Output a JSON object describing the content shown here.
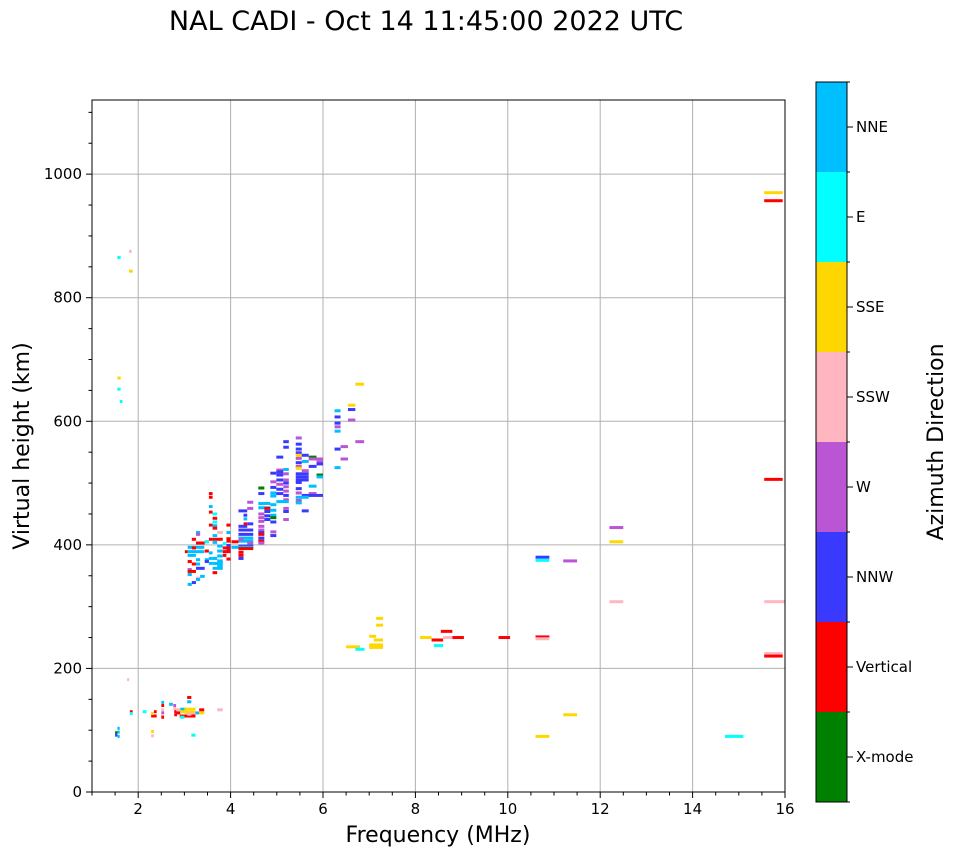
{
  "chart_data": {
    "type": "scatter",
    "title": "NAL CADI - Oct 14 11:45:00 2022 UTC",
    "xlabel": "Frequency (MHz)",
    "ylabel": "Virtual height (km)",
    "xlim": [
      1,
      16
    ],
    "ylim": [
      0,
      1120
    ],
    "xticks": [
      2,
      4,
      6,
      8,
      10,
      12,
      14,
      16
    ],
    "yticks": [
      0,
      200,
      400,
      600,
      800,
      1000
    ],
    "grid": true,
    "colorbar": {
      "label": "Azimuth Direction",
      "categories": [
        "X-mode",
        "Vertical",
        "NNW",
        "W",
        "SSW",
        "SSE",
        "E",
        "NNE"
      ],
      "colors": [
        "#008000",
        "#ff0000",
        "#3a3aff",
        "#ba55d3",
        "#ffb6c1",
        "#ffd700",
        "#00ffff",
        "#00bfff"
      ]
    },
    "marks_format": "[freq_start_MHz, freq_end_MHz, height_km, category_index]",
    "marks": [
      [
        15.55,
        15.95,
        970,
        5
      ],
      [
        15.55,
        15.95,
        957,
        1
      ],
      [
        15.55,
        15.95,
        506,
        1
      ],
      [
        15.55,
        16.0,
        308,
        4
      ],
      [
        12.2,
        12.5,
        308,
        4
      ],
      [
        15.55,
        15.95,
        224,
        4
      ],
      [
        15.55,
        15.95,
        220,
        1
      ],
      [
        14.7,
        15.1,
        90,
        6
      ],
      [
        10.6,
        10.9,
        90,
        5
      ],
      [
        11.2,
        11.5,
        125,
        5
      ],
      [
        10.6,
        10.9,
        380,
        2
      ],
      [
        10.6,
        10.9,
        375,
        6
      ],
      [
        11.2,
        11.5,
        374,
        3
      ],
      [
        12.2,
        12.5,
        428,
        3
      ],
      [
        12.2,
        12.5,
        405,
        5
      ],
      [
        10.6,
        10.9,
        251,
        1
      ],
      [
        10.6,
        10.9,
        248,
        4
      ],
      [
        9.8,
        10.05,
        250,
        1
      ],
      [
        8.1,
        8.35,
        250,
        5
      ],
      [
        8.35,
        8.6,
        246,
        1
      ],
      [
        8.4,
        8.6,
        237,
        6
      ],
      [
        8.55,
        8.8,
        260,
        1
      ],
      [
        8.8,
        9.05,
        250,
        1
      ],
      [
        8.6,
        8.8,
        250,
        4
      ],
      [
        6.5,
        6.8,
        235,
        5
      ],
      [
        6.7,
        6.9,
        231,
        6
      ],
      [
        7.0,
        7.3,
        238,
        5
      ],
      [
        7.0,
        7.3,
        234,
        5
      ],
      [
        7.1,
        7.3,
        246,
        5
      ],
      [
        7.15,
        7.3,
        270,
        5
      ],
      [
        7.15,
        7.3,
        281,
        5
      ],
      [
        7.0,
        7.15,
        252,
        5
      ],
      [
        1.55,
        1.62,
        865,
        6
      ],
      [
        1.8,
        1.86,
        875,
        4
      ],
      [
        1.8,
        1.88,
        843,
        5
      ],
      [
        1.55,
        1.62,
        670,
        5
      ],
      [
        1.55,
        1.62,
        652,
        6
      ],
      [
        1.6,
        1.66,
        632,
        6
      ],
      [
        6.7,
        6.89,
        660,
        5
      ],
      [
        6.54,
        6.7,
        626,
        5
      ],
      [
        6.54,
        6.7,
        619,
        2
      ],
      [
        6.54,
        6.7,
        602,
        3
      ],
      [
        6.25,
        6.38,
        617,
        7
      ],
      [
        6.25,
        6.38,
        607,
        2
      ],
      [
        6.25,
        6.38,
        597,
        2
      ],
      [
        6.25,
        6.38,
        591,
        3
      ],
      [
        6.25,
        6.38,
        584,
        7
      ],
      [
        6.7,
        6.89,
        567,
        3
      ],
      [
        6.25,
        6.38,
        555,
        2
      ],
      [
        6.38,
        6.54,
        559,
        3
      ],
      [
        6.38,
        6.54,
        539,
        3
      ],
      [
        6.25,
        6.38,
        525,
        7
      ],
      [
        5.41,
        5.54,
        573,
        3
      ],
      [
        5.41,
        5.54,
        563,
        2
      ],
      [
        5.41,
        5.54,
        555,
        2
      ],
      [
        5.41,
        5.54,
        549,
        2
      ],
      [
        5.41,
        5.54,
        545,
        5
      ],
      [
        5.54,
        5.69,
        545,
        2
      ],
      [
        5.41,
        5.54,
        540,
        3
      ],
      [
        5.69,
        5.86,
        542,
        0
      ],
      [
        5.69,
        6.0,
        539,
        3
      ],
      [
        5.86,
        6.0,
        534,
        3
      ],
      [
        5.86,
        6.0,
        531,
        2
      ],
      [
        5.54,
        5.69,
        535,
        7
      ],
      [
        5.41,
        5.54,
        533,
        2
      ],
      [
        5.41,
        5.54,
        527,
        3
      ],
      [
        5.41,
        5.54,
        524,
        5
      ],
      [
        5.54,
        5.69,
        520,
        3
      ],
      [
        5.69,
        5.86,
        527,
        2
      ],
      [
        5.41,
        5.69,
        515,
        2
      ],
      [
        5.41,
        5.69,
        510,
        2
      ],
      [
        5.41,
        5.69,
        505,
        2
      ],
      [
        5.86,
        6.0,
        513,
        0
      ],
      [
        5.86,
        6.0,
        510,
        7
      ],
      [
        5.69,
        5.86,
        495,
        7
      ],
      [
        5.41,
        5.54,
        501,
        2
      ],
      [
        5.41,
        5.54,
        491,
        2
      ],
      [
        5.41,
        5.54,
        484,
        3
      ],
      [
        5.69,
        5.86,
        483,
        3
      ],
      [
        5.54,
        6.0,
        480,
        2
      ],
      [
        5.41,
        5.69,
        477,
        7
      ],
      [
        5.41,
        5.54,
        472,
        3
      ],
      [
        5.41,
        5.54,
        468,
        7
      ],
      [
        5.54,
        5.69,
        455,
        2
      ],
      [
        5.14,
        5.26,
        567,
        2
      ],
      [
        5.14,
        5.26,
        558,
        2
      ],
      [
        4.99,
        5.14,
        542,
        2
      ],
      [
        4.86,
        4.99,
        516,
        2
      ],
      [
        4.99,
        5.14,
        521,
        3
      ],
      [
        4.99,
        5.14,
        518,
        2
      ],
      [
        5.14,
        5.26,
        522,
        7
      ],
      [
        5.14,
        5.26,
        515,
        3
      ],
      [
        5.14,
        5.26,
        505,
        3
      ],
      [
        5.14,
        5.26,
        500,
        2
      ],
      [
        5.14,
        5.26,
        494,
        3
      ],
      [
        5.14,
        5.26,
        487,
        3
      ],
      [
        5.14,
        5.26,
        480,
        2
      ],
      [
        5.14,
        5.26,
        473,
        3
      ],
      [
        4.99,
        5.14,
        513,
        2
      ],
      [
        4.99,
        5.14,
        505,
        2
      ],
      [
        4.99,
        5.14,
        498,
        3
      ],
      [
        4.99,
        5.14,
        490,
        2
      ],
      [
        4.86,
        4.99,
        502,
        3
      ],
      [
        4.86,
        4.99,
        493,
        2
      ],
      [
        4.86,
        4.99,
        484,
        7
      ],
      [
        4.86,
        4.99,
        479,
        7
      ],
      [
        4.99,
        5.14,
        483,
        2
      ],
      [
        4.99,
        5.26,
        470,
        7
      ],
      [
        5.14,
        5.26,
        459,
        3
      ],
      [
        5.14,
        5.26,
        454,
        2
      ],
      [
        5.14,
        5.26,
        441,
        3
      ],
      [
        4.6,
        4.73,
        492,
        0
      ],
      [
        4.6,
        4.73,
        483,
        2
      ],
      [
        4.6,
        4.86,
        467,
        7
      ],
      [
        4.6,
        4.86,
        460,
        7
      ],
      [
        4.6,
        4.73,
        450,
        3
      ],
      [
        4.6,
        4.73,
        444,
        3
      ],
      [
        4.6,
        4.73,
        438,
        3
      ],
      [
        4.73,
        4.86,
        459,
        1
      ],
      [
        4.73,
        4.86,
        454,
        2
      ],
      [
        4.73,
        4.86,
        447,
        2
      ],
      [
        4.73,
        4.86,
        441,
        2
      ],
      [
        4.86,
        4.99,
        465,
        7
      ],
      [
        4.86,
        4.99,
        456,
        7
      ],
      [
        4.86,
        4.99,
        448,
        7
      ],
      [
        4.86,
        4.99,
        444,
        0
      ],
      [
        4.86,
        4.99,
        437,
        2
      ],
      [
        4.86,
        4.99,
        421,
        3
      ],
      [
        4.86,
        4.99,
        415,
        2
      ],
      [
        4.6,
        4.73,
        430,
        3
      ],
      [
        4.6,
        4.73,
        424,
        3
      ],
      [
        4.6,
        4.73,
        420,
        2
      ],
      [
        4.6,
        4.73,
        417,
        1
      ],
      [
        4.6,
        4.73,
        411,
        2
      ],
      [
        4.6,
        4.73,
        406,
        1
      ],
      [
        4.6,
        4.73,
        403,
        3
      ],
      [
        4.36,
        4.49,
        469,
        3
      ],
      [
        4.36,
        4.49,
        459,
        3
      ],
      [
        4.17,
        4.36,
        455,
        2
      ],
      [
        4.28,
        4.36,
        448,
        2
      ],
      [
        4.28,
        4.36,
        442,
        7
      ],
      [
        4.17,
        4.36,
        430,
        2
      ],
      [
        4.28,
        4.36,
        434,
        1
      ],
      [
        4.36,
        4.49,
        434,
        2
      ],
      [
        4.17,
        4.49,
        424,
        2
      ],
      [
        4.17,
        4.49,
        417,
        2
      ],
      [
        4.17,
        4.49,
        411,
        7
      ],
      [
        4.17,
        4.49,
        406,
        7
      ],
      [
        4.17,
        4.28,
        409,
        3
      ],
      [
        4.36,
        4.49,
        403,
        3
      ],
      [
        4.17,
        4.49,
        398,
        2
      ],
      [
        4.02,
        4.49,
        396,
        7
      ],
      [
        4.02,
        4.17,
        405,
        1
      ],
      [
        4.17,
        4.49,
        394,
        1
      ],
      [
        3.91,
        4.0,
        410,
        1
      ],
      [
        3.91,
        4.0,
        406,
        1
      ],
      [
        3.91,
        4.0,
        399,
        2
      ],
      [
        3.91,
        4.0,
        392,
        2
      ],
      [
        4.17,
        4.28,
        388,
        1
      ],
      [
        4.17,
        4.28,
        383,
        1
      ],
      [
        4.17,
        4.28,
        378,
        2
      ],
      [
        3.53,
        3.61,
        483,
        1
      ],
      [
        3.53,
        3.61,
        477,
        1
      ],
      [
        3.53,
        3.61,
        462,
        7
      ],
      [
        3.53,
        3.61,
        453,
        1
      ],
      [
        3.61,
        3.71,
        450,
        6
      ],
      [
        3.61,
        3.71,
        443,
        1
      ],
      [
        3.61,
        3.71,
        437,
        6
      ],
      [
        3.53,
        3.61,
        432,
        1
      ],
      [
        3.91,
        4.0,
        432,
        1
      ],
      [
        3.61,
        3.71,
        431,
        7
      ],
      [
        3.61,
        3.71,
        427,
        1
      ],
      [
        3.71,
        3.83,
        420,
        4
      ],
      [
        3.91,
        4.0,
        420,
        7
      ],
      [
        3.25,
        3.34,
        420,
        7
      ],
      [
        3.25,
        3.34,
        417,
        3
      ],
      [
        3.16,
        3.25,
        409,
        1
      ],
      [
        3.53,
        3.61,
        409,
        1
      ],
      [
        3.61,
        3.83,
        409,
        1
      ],
      [
        3.44,
        3.53,
        405,
        7
      ],
      [
        3.25,
        3.44,
        403,
        1
      ],
      [
        3.83,
        3.91,
        402,
        6
      ],
      [
        3.61,
        3.71,
        415,
        7
      ],
      [
        3.61,
        3.71,
        404,
        7
      ],
      [
        3.83,
        4.0,
        395,
        1
      ],
      [
        3.83,
        4.0,
        389,
        1
      ],
      [
        3.83,
        3.91,
        383,
        1
      ],
      [
        3.91,
        4.0,
        377,
        1
      ],
      [
        3.71,
        3.83,
        398,
        7
      ],
      [
        3.71,
        3.83,
        390,
        7
      ],
      [
        3.71,
        3.83,
        382,
        7
      ],
      [
        3.71,
        3.83,
        374,
        7
      ],
      [
        3.71,
        3.83,
        366,
        7
      ],
      [
        3.61,
        3.71,
        378,
        7
      ],
      [
        3.61,
        3.83,
        370,
        7
      ],
      [
        3.61,
        3.83,
        362,
        7
      ],
      [
        3.61,
        3.71,
        355,
        1
      ],
      [
        3.07,
        3.43,
        396,
        7
      ],
      [
        3.07,
        3.43,
        389,
        7
      ],
      [
        3.07,
        3.25,
        383,
        7
      ],
      [
        3.01,
        3.07,
        389,
        1
      ],
      [
        3.16,
        3.25,
        395,
        1
      ],
      [
        3.44,
        3.53,
        390,
        1
      ],
      [
        3.53,
        3.61,
        387,
        7
      ],
      [
        3.53,
        3.61,
        378,
        7
      ],
      [
        3.53,
        3.61,
        370,
        7
      ],
      [
        3.07,
        3.16,
        373,
        1
      ],
      [
        3.16,
        3.25,
        369,
        1
      ],
      [
        3.25,
        3.34,
        376,
        7
      ],
      [
        3.25,
        3.34,
        369,
        7
      ],
      [
        3.25,
        3.44,
        362,
        2
      ],
      [
        3.07,
        3.16,
        360,
        3
      ],
      [
        3.07,
        3.25,
        357,
        1
      ],
      [
        3.34,
        3.44,
        349,
        7
      ],
      [
        3.25,
        3.34,
        346,
        4
      ],
      [
        3.07,
        3.16,
        352,
        7
      ],
      [
        3.16,
        3.25,
        339,
        2
      ],
      [
        3.07,
        3.16,
        336,
        7
      ],
      [
        3.44,
        3.53,
        405,
        6
      ],
      [
        3.25,
        3.34,
        344,
        7
      ],
      [
        3.44,
        3.53,
        376,
        7
      ],
      [
        3.44,
        3.53,
        373,
        2
      ],
      [
        1.76,
        1.8,
        182,
        4
      ],
      [
        1.82,
        1.88,
        130,
        1
      ],
      [
        1.82,
        1.88,
        127,
        6
      ],
      [
        2.1,
        2.18,
        130,
        6
      ],
      [
        2.5,
        2.56,
        145,
        7
      ],
      [
        2.5,
        2.56,
        140,
        1
      ],
      [
        2.67,
        2.75,
        142,
        7
      ],
      [
        2.76,
        2.82,
        140,
        3
      ],
      [
        2.76,
        2.82,
        135,
        4
      ],
      [
        2.78,
        2.84,
        130,
        1
      ],
      [
        2.78,
        2.84,
        125,
        1
      ],
      [
        2.34,
        2.4,
        130,
        1
      ],
      [
        2.28,
        2.4,
        123,
        1
      ],
      [
        2.28,
        2.34,
        127,
        5
      ],
      [
        2.5,
        2.56,
        133,
        4
      ],
      [
        2.5,
        2.56,
        128,
        3
      ],
      [
        2.5,
        2.56,
        124,
        4
      ],
      [
        2.5,
        2.56,
        121,
        1
      ],
      [
        3.06,
        3.15,
        153,
        1
      ],
      [
        3.06,
        3.15,
        146,
        7
      ],
      [
        2.91,
        3.05,
        134,
        7
      ],
      [
        2.82,
        2.91,
        133,
        4
      ],
      [
        2.82,
        2.91,
        128,
        1
      ],
      [
        2.91,
        3.0,
        130,
        5
      ],
      [
        3.0,
        3.24,
        134,
        5
      ],
      [
        3.0,
        3.24,
        129,
        5
      ],
      [
        2.9,
        3.24,
        123,
        1
      ],
      [
        3.06,
        3.24,
        126,
        4
      ],
      [
        2.91,
        3.0,
        121,
        6
      ],
      [
        3.32,
        3.43,
        133,
        1
      ],
      [
        3.32,
        3.43,
        128,
        5
      ],
      [
        3.24,
        3.32,
        128,
        7
      ],
      [
        3.15,
        3.24,
        123,
        1
      ],
      [
        3.71,
        3.83,
        133,
        4
      ],
      [
        1.55,
        1.6,
        103,
        7
      ],
      [
        1.55,
        1.6,
        97,
        7
      ],
      [
        1.5,
        1.55,
        96,
        0
      ],
      [
        1.5,
        1.55,
        92,
        2
      ],
      [
        1.55,
        1.6,
        90,
        7
      ],
      [
        2.28,
        2.34,
        98,
        5
      ],
      [
        2.28,
        2.34,
        91,
        4
      ],
      [
        3.15,
        3.24,
        92,
        6
      ]
    ]
  }
}
